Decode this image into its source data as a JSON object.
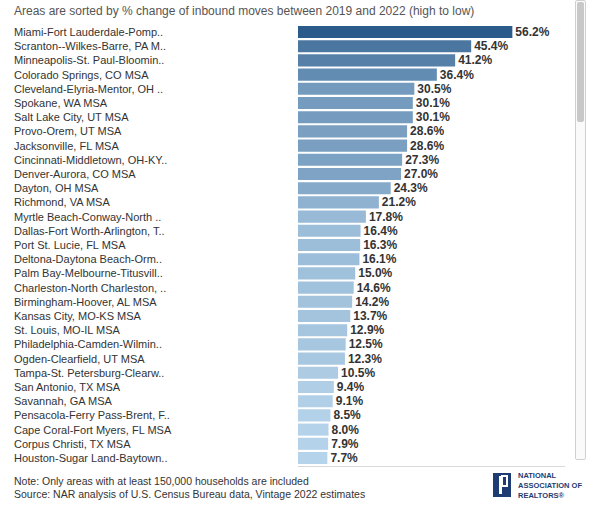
{
  "chart_data": {
    "type": "bar",
    "orientation": "horizontal",
    "title": "Areas are sorted by % change of inbound moves between 2019 and 2022 (high to low)",
    "categories": [
      "Miami-Fort Lauderdale-Pomp..",
      "Scranton--Wilkes-Barre, PA M..",
      "Minneapolis-St. Paul-Bloomin..",
      "Colorado Springs, CO MSA",
      "Cleveland-Elyria-Mentor, OH ..",
      "Spokane, WA MSA",
      "Salt Lake City, UT MSA",
      "Provo-Orem, UT MSA",
      "Jacksonville, FL MSA",
      "Cincinnati-Middletown, OH-KY..",
      "Denver-Aurora, CO MSA",
      "Dayton, OH MSA",
      "Richmond, VA MSA",
      "Myrtle Beach-Conway-North ..",
      "Dallas-Fort Worth-Arlington, T..",
      "Port St. Lucie, FL MSA",
      "Deltona-Daytona Beach-Orm..",
      "Palm Bay-Melbourne-Titusvill..",
      "Charleston-North Charleston, ..",
      "Birmingham-Hoover, AL MSA",
      "Kansas City, MO-KS MSA",
      "St. Louis, MO-IL MSA",
      "Philadelphia-Camden-Wilmin..",
      "Ogden-Clearfield, UT MSA",
      "Tampa-St. Petersburg-Clearw..",
      "San Antonio, TX MSA",
      "Savannah, GA MSA",
      "Pensacola-Ferry Pass-Brent, F..",
      "Cape Coral-Fort Myers, FL MSA",
      "Corpus Christi, TX MSA",
      "Houston-Sugar Land-Baytown.."
    ],
    "values": [
      56.2,
      45.4,
      41.2,
      36.4,
      30.5,
      30.1,
      30.1,
      28.6,
      28.6,
      27.3,
      27.0,
      24.3,
      21.2,
      17.8,
      16.4,
      16.3,
      16.1,
      15.0,
      14.6,
      14.2,
      13.7,
      12.9,
      12.5,
      12.3,
      10.5,
      9.4,
      9.1,
      8.5,
      8.0,
      7.9,
      7.7
    ],
    "value_labels": [
      "56.2%",
      "45.4%",
      "41.2%",
      "36.4%",
      "30.5%",
      "30.1%",
      "30.1%",
      "28.6%",
      "28.6%",
      "27.3%",
      "27.0%",
      "24.3%",
      "21.2%",
      "17.8%",
      "16.4%",
      "16.3%",
      "16.1%",
      "15.0%",
      "14.6%",
      "14.2%",
      "13.7%",
      "12.9%",
      "12.5%",
      "12.3%",
      "10.5%",
      "9.4%",
      "9.1%",
      "8.5%",
      "8.0%",
      "7.9%",
      "7.7%"
    ],
    "colors": [
      "#2b5b8b",
      "#4a76a0",
      "#5680a8",
      "#638cb2",
      "#749bbd",
      "#759cbe",
      "#759cbe",
      "#7a9fc1",
      "#7a9fc1",
      "#7da3c4",
      "#7ea3c4",
      "#86aaca",
      "#8fb2d0",
      "#98bad6",
      "#9cbed9",
      "#9dbed9",
      "#9dbeda",
      "#a0c1dc",
      "#a1c2dd",
      "#a3c3dd",
      "#a4c4de",
      "#a6c6e0",
      "#a7c7e1",
      "#a8c8e1",
      "#adcce4",
      "#b0cfe7",
      "#b1d0e7",
      "#b3d1e8",
      "#b4d2e9",
      "#b4d2e9",
      "#b5d3ea"
    ],
    "xlim": [
      0,
      70
    ],
    "xticks": [],
    "tick_labels": "y",
    "data_labels": true,
    "grid": false,
    "annotations": [
      "Note: Only areas with at least 150,000 households are included",
      "Source: NAR analysis of U.S. Census Bureau data, Vintage 2022 estimates"
    ],
    "logo_text": [
      "NATIONAL",
      "ASSOCIATION OF",
      "REALTORS®"
    ]
  }
}
